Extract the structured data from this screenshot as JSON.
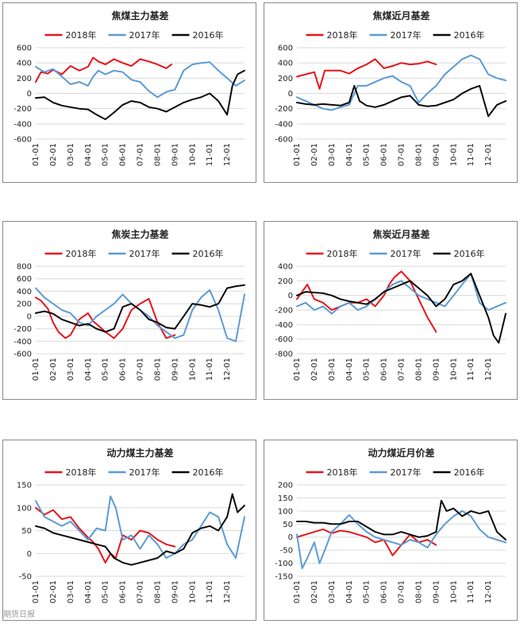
{
  "months": [
    "01-01",
    "02-01",
    "03-01",
    "04-01",
    "05-01",
    "06-01",
    "07-01",
    "08-01",
    "09-01",
    "10-01",
    "11-01",
    "12-01"
  ],
  "legend": {
    "s2018": {
      "label": "2018年",
      "color": "#e8141b"
    },
    "s2017": {
      "label": "2017年",
      "color": "#5b9bd5"
    },
    "s2016": {
      "label": "2016年",
      "color": "#0a0a0a"
    }
  },
  "watermark": "期货日报",
  "chart_data": [
    {
      "type": "line",
      "title": "焦煤主力基差",
      "ylim": [
        -600,
        600
      ],
      "yticks": [
        600,
        400,
        200,
        0,
        -200,
        -400,
        -600
      ],
      "categories": [
        "01-01",
        "02-01",
        "03-01",
        "04-01",
        "05-01",
        "06-01",
        "07-01",
        "08-01",
        "09-01",
        "10-01",
        "11-01",
        "12-01"
      ],
      "series": [
        {
          "name": "2018年",
          "x": [
            0,
            0.3,
            0.7,
            1,
            1.5,
            2,
            2.5,
            3,
            3.3,
            3.6,
            4,
            4.5,
            5,
            5.5,
            6,
            6.5,
            7,
            7.5,
            7.8
          ],
          "values": [
            150,
            280,
            260,
            310,
            250,
            360,
            300,
            350,
            470,
            420,
            380,
            450,
            400,
            360,
            450,
            420,
            380,
            330,
            380
          ]
        },
        {
          "name": "2017年",
          "x": [
            0,
            0.5,
            1,
            1.5,
            2,
            2.5,
            3,
            3.3,
            3.6,
            4,
            4.5,
            5,
            5.5,
            6,
            6.5,
            7,
            7.5,
            8,
            8.5,
            9,
            9.5,
            10,
            10.5,
            11,
            11.5,
            12
          ],
          "values": [
            350,
            280,
            320,
            220,
            120,
            150,
            100,
            220,
            300,
            250,
            300,
            280,
            180,
            150,
            30,
            -50,
            20,
            50,
            300,
            380,
            400,
            410,
            300,
            200,
            100,
            170
          ]
        },
        {
          "name": "2016年",
          "x": [
            0,
            0.5,
            1,
            1.5,
            2,
            2.5,
            3,
            3.5,
            4,
            4.5,
            5,
            5.5,
            6,
            6.5,
            7,
            7.5,
            8,
            8.5,
            9,
            9.5,
            10,
            10.5,
            11,
            11.3,
            11.6,
            12
          ],
          "values": [
            -60,
            -50,
            -120,
            -160,
            -180,
            -200,
            -210,
            -280,
            -340,
            -250,
            -150,
            -100,
            -120,
            -180,
            -200,
            -240,
            -180,
            -120,
            -80,
            -50,
            0,
            -100,
            -280,
            100,
            250,
            300
          ]
        }
      ]
    },
    {
      "type": "line",
      "title": "焦煤近月基差",
      "ylim": [
        -600,
        600
      ],
      "yticks": [
        600,
        400,
        200,
        0,
        -200,
        -400,
        -600
      ],
      "categories": [
        "01-01",
        "02-01",
        "03-01",
        "04-01",
        "05-01",
        "06-01",
        "07-01",
        "08-01",
        "09-01",
        "10-01",
        "11-01",
        "12-01"
      ],
      "series": [
        {
          "name": "2018年",
          "x": [
            0,
            0.5,
            1,
            1.3,
            1.6,
            2,
            2.5,
            3,
            3.5,
            4,
            4.5,
            5,
            5.5,
            6,
            6.5,
            7,
            7.5,
            8
          ],
          "values": [
            220,
            250,
            280,
            60,
            300,
            300,
            300,
            260,
            330,
            380,
            450,
            330,
            360,
            400,
            380,
            390,
            420,
            380
          ]
        },
        {
          "name": "2017年",
          "x": [
            0,
            0.5,
            1,
            1.5,
            2,
            2.5,
            3,
            3.5,
            4,
            4.5,
            5,
            5.5,
            6,
            6.5,
            7,
            7.5,
            8,
            8.5,
            9,
            9.5,
            10,
            10.5,
            11,
            11.5,
            12
          ],
          "values": [
            -50,
            -100,
            -150,
            -200,
            -220,
            -180,
            -150,
            100,
            100,
            150,
            200,
            230,
            150,
            100,
            -120,
            0,
            100,
            250,
            350,
            450,
            500,
            450,
            250,
            200,
            170
          ]
        },
        {
          "name": "2016年",
          "x": [
            0,
            0.5,
            1,
            1.5,
            2,
            2.5,
            3,
            3.3,
            3.6,
            4,
            4.5,
            5,
            5.5,
            6,
            6.5,
            7,
            7.5,
            8,
            8.5,
            9,
            9.5,
            10,
            10.5,
            11,
            11.5,
            12
          ],
          "values": [
            -120,
            -140,
            -150,
            -140,
            -150,
            -160,
            -120,
            100,
            -100,
            -160,
            -180,
            -150,
            -100,
            -50,
            -30,
            -150,
            -170,
            -160,
            -120,
            -80,
            0,
            60,
            100,
            -300,
            -150,
            -100
          ]
        }
      ]
    },
    {
      "type": "line",
      "title": "焦炭主力基差",
      "ylim": [
        -600,
        800
      ],
      "yticks": [
        800,
        600,
        400,
        200,
        0,
        -200,
        -400,
        -600
      ],
      "categories": [
        "01-01",
        "02-01",
        "03-01",
        "04-01",
        "05-01",
        "06-01",
        "07-01",
        "08-01",
        "09-01",
        "10-01",
        "11-01",
        "12-01"
      ],
      "series": [
        {
          "name": "2018年",
          "x": [
            0,
            0.3,
            0.7,
            1,
            1.3,
            1.7,
            2,
            2.5,
            3,
            3.3,
            3.6,
            4,
            4.5,
            5,
            5.5,
            6,
            6.5,
            7,
            7.5,
            8
          ],
          "values": [
            300,
            250,
            120,
            -100,
            -250,
            -350,
            -300,
            -50,
            50,
            -80,
            -150,
            -250,
            -350,
            -200,
            100,
            200,
            280,
            -100,
            -350,
            -300
          ]
        },
        {
          "name": "2017年",
          "x": [
            0,
            0.5,
            1,
            1.5,
            2,
            2.5,
            3,
            3.5,
            4,
            4.5,
            5,
            5.5,
            6,
            6.5,
            7,
            7.5,
            8,
            8.5,
            9,
            9.5,
            10,
            10.5,
            11,
            11.5,
            12
          ],
          "values": [
            450,
            300,
            200,
            100,
            50,
            -100,
            -150,
            0,
            100,
            200,
            350,
            200,
            100,
            0,
            -150,
            -250,
            -350,
            -300,
            100,
            300,
            420,
            100,
            -350,
            -400,
            350
          ]
        },
        {
          "name": "2016年",
          "x": [
            0,
            0.5,
            1,
            1.5,
            2,
            2.5,
            3,
            3.5,
            4,
            4.5,
            5,
            5.5,
            6,
            6.5,
            7,
            7.5,
            8,
            8.5,
            9,
            9.5,
            10,
            10.5,
            11,
            11.5,
            12
          ],
          "values": [
            50,
            80,
            40,
            -50,
            -100,
            -150,
            -120,
            -200,
            -250,
            -200,
            150,
            200,
            100,
            -50,
            -100,
            -180,
            -200,
            0,
            200,
            180,
            150,
            200,
            450,
            480,
            500
          ]
        }
      ]
    },
    {
      "type": "line",
      "title": "焦炭近月基差",
      "ylim": [
        -800,
        400
      ],
      "yticks": [
        400,
        200,
        0,
        -200,
        -400,
        -600,
        -800
      ],
      "categories": [
        "01-01",
        "02-01",
        "03-01",
        "04-01",
        "05-01",
        "06-01",
        "07-01",
        "08-01",
        "09-01",
        "10-01",
        "11-01",
        "12-01"
      ],
      "series": [
        {
          "name": "2018年",
          "x": [
            0,
            0.3,
            0.6,
            1,
            1.5,
            2,
            2.5,
            3,
            3.5,
            4,
            4.5,
            5,
            5.3,
            5.6,
            6,
            6.5,
            7,
            7.5,
            8
          ],
          "values": [
            -50,
            50,
            150,
            -50,
            -100,
            -200,
            -150,
            -100,
            -100,
            -50,
            -150,
            0,
            150,
            250,
            330,
            200,
            -50,
            -300,
            -500
          ]
        },
        {
          "name": "2017年",
          "x": [
            0,
            0.5,
            1,
            1.5,
            2,
            2.5,
            3,
            3.5,
            4,
            4.5,
            5,
            5.5,
            6,
            6.5,
            7,
            7.5,
            8,
            8.5,
            9,
            9.5,
            10,
            10.5,
            11,
            11.5,
            12
          ],
          "values": [
            -150,
            -100,
            -200,
            -150,
            -250,
            -150,
            -100,
            -200,
            -150,
            -50,
            50,
            150,
            200,
            100,
            0,
            -50,
            -100,
            -150,
            0,
            150,
            300,
            -100,
            -200,
            -150,
            -100
          ]
        },
        {
          "name": "2016年",
          "x": [
            0,
            0.5,
            1,
            1.5,
            2,
            2.5,
            3,
            3.5,
            4,
            4.5,
            5,
            5.5,
            6,
            6.5,
            7,
            7.5,
            8,
            8.5,
            9,
            9.5,
            10,
            10.5,
            11,
            11.3,
            11.6,
            12
          ],
          "values": [
            0,
            50,
            40,
            30,
            0,
            -50,
            -80,
            -100,
            -120,
            -50,
            50,
            100,
            150,
            200,
            100,
            0,
            -150,
            -50,
            150,
            200,
            300,
            0,
            -300,
            -550,
            -650,
            -250
          ]
        }
      ]
    },
    {
      "type": "line",
      "title": "动力煤主力基差",
      "ylim": [
        -50,
        150
      ],
      "yticks": [
        150,
        100,
        50,
        0,
        -50
      ],
      "categories": [
        "01-01",
        "02-01",
        "03-01",
        "04-01",
        "05-01",
        "06-01",
        "07-01",
        "08-01",
        "09-01",
        "10-01",
        "11-01",
        "12-01"
      ],
      "series": [
        {
          "name": "2018年",
          "x": [
            0,
            0.5,
            1,
            1.5,
            2,
            2.5,
            3,
            3.3,
            3.6,
            4,
            4.3,
            4.6,
            5,
            5.5,
            6,
            6.5,
            7,
            7.5,
            8
          ],
          "values": [
            100,
            85,
            95,
            75,
            80,
            55,
            35,
            25,
            10,
            -20,
            0,
            -10,
            40,
            30,
            50,
            45,
            30,
            20,
            15
          ]
        },
        {
          "name": "2017年",
          "x": [
            0,
            0.5,
            1,
            1.5,
            2,
            2.5,
            3,
            3.5,
            4,
            4.3,
            4.6,
            5,
            5.5,
            6,
            6.5,
            7,
            7.5,
            8,
            8.5,
            9,
            9.5,
            10,
            10.5,
            11,
            11.5,
            12
          ],
          "values": [
            115,
            80,
            70,
            60,
            70,
            50,
            30,
            55,
            50,
            125,
            100,
            30,
            40,
            10,
            40,
            20,
            -10,
            0,
            20,
            30,
            60,
            90,
            80,
            20,
            -10,
            80
          ]
        },
        {
          "name": "2016年",
          "x": [
            0,
            0.5,
            1,
            1.5,
            2,
            2.5,
            3,
            3.5,
            4,
            4.5,
            5,
            5.5,
            6,
            6.5,
            7,
            7.5,
            8,
            8.5,
            9,
            9.5,
            10,
            10.5,
            11,
            11.3,
            11.6,
            12
          ],
          "values": [
            60,
            55,
            45,
            40,
            35,
            30,
            25,
            20,
            15,
            -10,
            -20,
            -25,
            -20,
            -15,
            -10,
            5,
            0,
            10,
            45,
            55,
            60,
            50,
            80,
            130,
            90,
            105
          ]
        }
      ]
    },
    {
      "type": "line",
      "title": "动力煤近月价差",
      "ylim": [
        -150,
        200
      ],
      "yticks": [
        200,
        150,
        100,
        50,
        0,
        -50,
        -100,
        -150
      ],
      "categories": [
        "01-01",
        "02-01",
        "03-01",
        "04-01",
        "05-01",
        "06-01",
        "07-01",
        "08-01",
        "09-01",
        "10-01",
        "11-01",
        "12-01"
      ],
      "series": [
        {
          "name": "2018年",
          "x": [
            0,
            0.5,
            1,
            1.5,
            2,
            2.5,
            3,
            3.5,
            4,
            4.5,
            5,
            5.5,
            6,
            6.5,
            7,
            7.5,
            8
          ],
          "values": [
            0,
            10,
            20,
            30,
            15,
            25,
            20,
            10,
            0,
            -20,
            -10,
            -70,
            -30,
            10,
            -20,
            -10,
            -30
          ]
        },
        {
          "name": "2017年",
          "x": [
            0,
            0.3,
            0.6,
            1,
            1.3,
            1.6,
            2,
            2.5,
            3,
            3.5,
            4,
            4.5,
            5,
            5.5,
            6,
            6.5,
            7,
            7.5,
            8,
            8.5,
            9,
            9.5,
            10,
            10.5,
            11,
            11.5,
            12
          ],
          "values": [
            10,
            -120,
            -80,
            -20,
            -100,
            -50,
            20,
            50,
            85,
            50,
            20,
            0,
            -10,
            -20,
            -30,
            -10,
            -20,
            -40,
            10,
            50,
            80,
            100,
            80,
            30,
            0,
            -10,
            -20
          ]
        },
        {
          "name": "2016年",
          "x": [
            0,
            0.5,
            1,
            1.5,
            2,
            2.5,
            3,
            3.5,
            4,
            4.5,
            5,
            5.5,
            6,
            6.5,
            7,
            7.5,
            8,
            8.3,
            8.6,
            9,
            9.5,
            10,
            10.5,
            11,
            11.5,
            12
          ],
          "values": [
            60,
            60,
            55,
            55,
            50,
            50,
            60,
            60,
            40,
            20,
            10,
            10,
            20,
            10,
            0,
            5,
            20,
            140,
            100,
            110,
            80,
            100,
            90,
            100,
            20,
            -10
          ]
        }
      ]
    }
  ]
}
